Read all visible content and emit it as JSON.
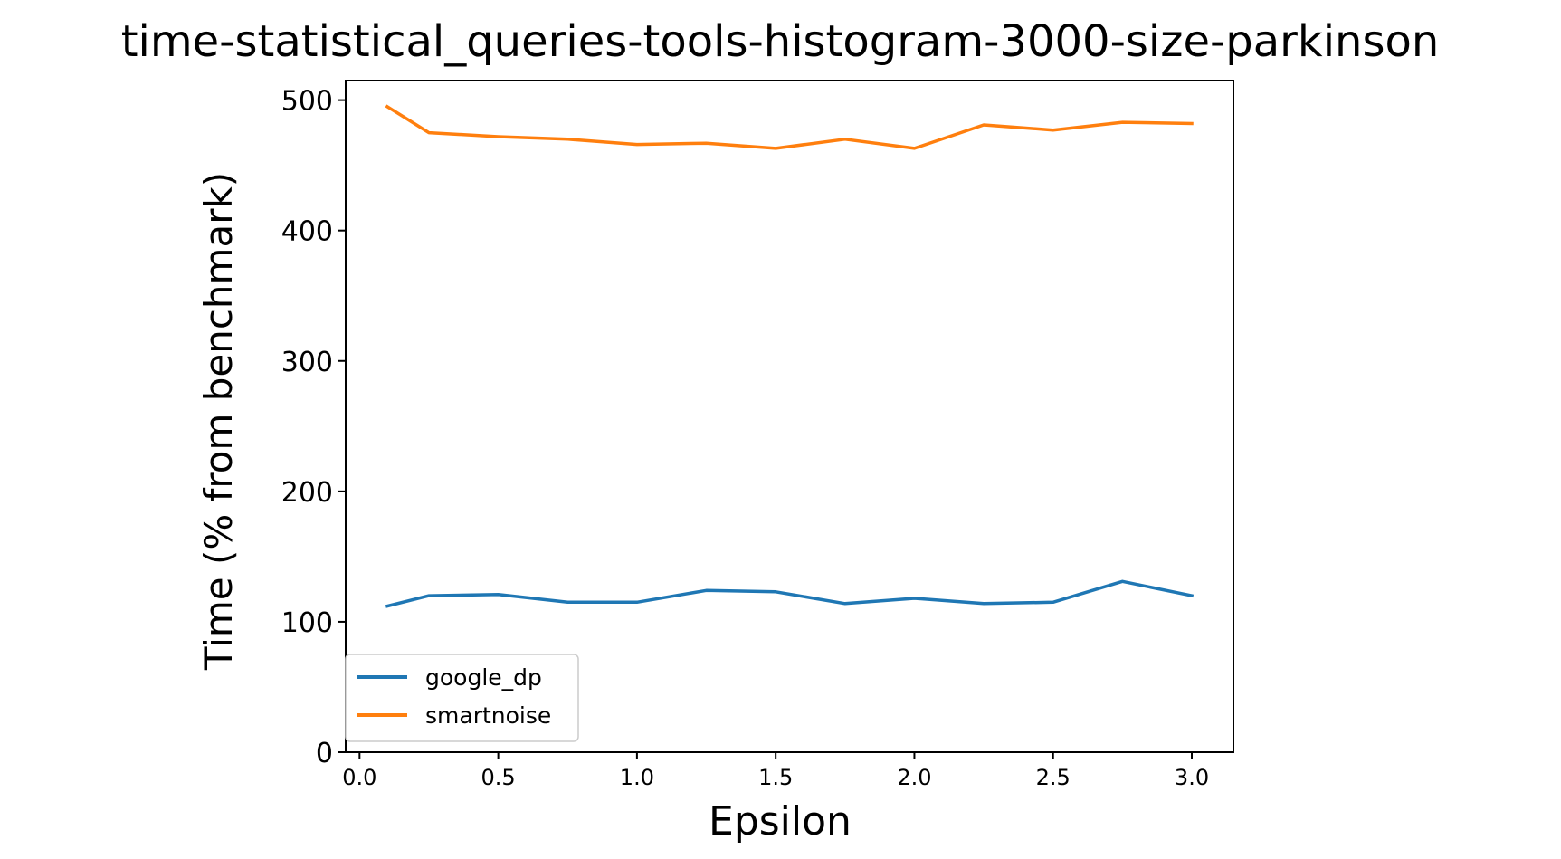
{
  "chart_data": {
    "type": "line",
    "title": "time-statistical_queries-tools-histogram-3000-size-parkinson",
    "xlabel": "Epsilon",
    "ylabel": "Time (% from benchmark)",
    "xlim": [
      -0.05,
      3.15
    ],
    "ylim": [
      0,
      515
    ],
    "xticks": [
      0.0,
      0.5,
      1.0,
      1.5,
      2.0,
      2.5,
      3.0
    ],
    "xtick_labels": [
      "0.0",
      "0.5",
      "1.0",
      "1.5",
      "2.0",
      "2.5",
      "3.0"
    ],
    "yticks": [
      0,
      100,
      200,
      300,
      400,
      500
    ],
    "ytick_labels": [
      "0",
      "100",
      "200",
      "300",
      "400",
      "500"
    ],
    "grid": false,
    "legend_position": "lower-left",
    "x": [
      0.1,
      0.25,
      0.5,
      0.75,
      1.0,
      1.25,
      1.5,
      1.75,
      2.0,
      2.25,
      2.5,
      2.75,
      3.0
    ],
    "series": [
      {
        "name": "google_dp",
        "color": "#1f77b4",
        "values": [
          112,
          120,
          121,
          115,
          115,
          124,
          123,
          114,
          118,
          114,
          115,
          131,
          120
        ]
      },
      {
        "name": "smartnoise",
        "color": "#ff7f0e",
        "values": [
          495,
          475,
          472,
          470,
          466,
          467,
          463,
          470,
          463,
          481,
          477,
          483,
          482
        ]
      }
    ]
  }
}
